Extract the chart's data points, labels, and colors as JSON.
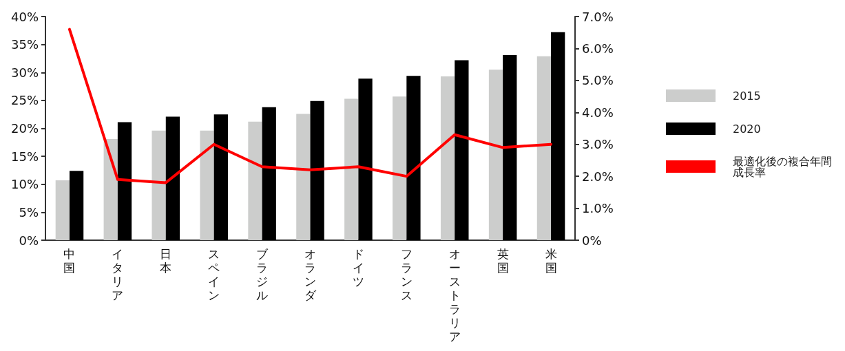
{
  "chart_data": {
    "type": "bar",
    "categories": [
      "中国",
      "イタリア",
      "日本",
      "スペイン",
      "ブラジル",
      "オランダ",
      "ドイツ",
      "フランス",
      "オーストラリア",
      "英国",
      "米国"
    ],
    "series": [
      {
        "name": "2015",
        "color": "#cccdcc",
        "values": [
          10.7,
          18.1,
          19.6,
          19.6,
          21.2,
          22.6,
          25.3,
          25.7,
          29.3,
          30.5,
          32.9
        ]
      },
      {
        "name": "2020",
        "color": "#000000",
        "values": [
          12.4,
          21.1,
          22.1,
          22.5,
          23.8,
          24.9,
          28.9,
          29.4,
          32.2,
          33.1,
          37.2
        ]
      },
      {
        "name": "最適化後の複合年間成長率",
        "type": "line",
        "axis": "y2",
        "color": "#ff0000",
        "values": [
          6.6,
          1.9,
          1.8,
          3.0,
          2.3,
          2.2,
          2.3,
          2.0,
          3.3,
          2.9,
          3.0
        ]
      }
    ],
    "ylim": [
      0,
      40
    ],
    "yticks": [
      {
        "value": 0,
        "label": "0%"
      },
      {
        "value": 5,
        "label": "5%"
      },
      {
        "value": 10,
        "label": "10%"
      },
      {
        "value": 15,
        "label": "15%"
      },
      {
        "value": 20,
        "label": "20%"
      },
      {
        "value": 25,
        "label": "25%"
      },
      {
        "value": 30,
        "label": "30%"
      },
      {
        "value": 35,
        "label": "35%"
      },
      {
        "value": 40,
        "label": "40%"
      }
    ],
    "y2lim": [
      0,
      7
    ],
    "y2ticks": [
      {
        "value": 0,
        "label": "0%"
      },
      {
        "value": 1,
        "label": "1.0%"
      },
      {
        "value": 2,
        "label": "2.0%"
      },
      {
        "value": 3,
        "label": "3.0%"
      },
      {
        "value": 4,
        "label": "4.0%"
      },
      {
        "value": 5,
        "label": "5.0%"
      },
      {
        "value": 6,
        "label": "6.0%"
      },
      {
        "value": 7,
        "label": "7.0%"
      }
    ],
    "grid": false,
    "legend": "right",
    "marker": "none"
  }
}
